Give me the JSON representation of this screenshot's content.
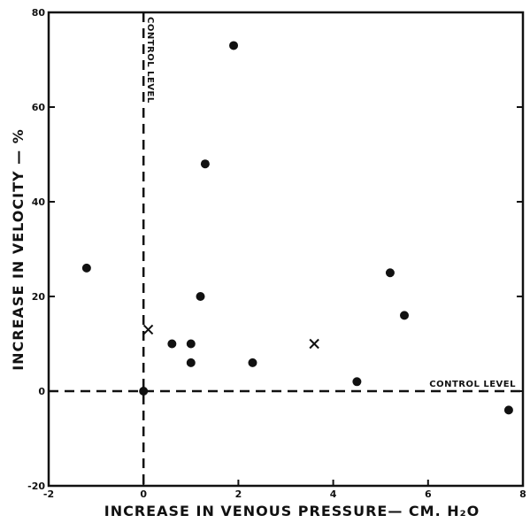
{
  "chart_data": {
    "type": "scatter",
    "title": "",
    "xlabel": "INCREASE IN VENOUS PRESSURE— CM. H₂O",
    "ylabel": "INCREASE IN VELOCITY — %",
    "xlim": [
      -2,
      8
    ],
    "ylim": [
      -20,
      80
    ],
    "x_ticks": [
      "-2",
      "0",
      "2",
      "4",
      "6",
      "8"
    ],
    "y_ticks": [
      "-20",
      "0",
      "20",
      "40",
      "60",
      "80"
    ],
    "grid": false,
    "series": [
      {
        "marker": "circle",
        "points": [
          {
            "x": -1.2,
            "y": 26
          },
          {
            "x": 0.0,
            "y": 0
          },
          {
            "x": 0.6,
            "y": 10
          },
          {
            "x": 1.0,
            "y": 10
          },
          {
            "x": 1.0,
            "y": 6
          },
          {
            "x": 1.2,
            "y": 20
          },
          {
            "x": 1.3,
            "y": 48
          },
          {
            "x": 1.9,
            "y": 73
          },
          {
            "x": 2.3,
            "y": 6
          },
          {
            "x": 4.5,
            "y": 2
          },
          {
            "x": 5.2,
            "y": 25
          },
          {
            "x": 5.5,
            "y": 16
          },
          {
            "x": 7.7,
            "y": -4
          }
        ]
      },
      {
        "marker": "x",
        "points": [
          {
            "x": 0.1,
            "y": 13
          },
          {
            "x": 3.6,
            "y": 10
          }
        ]
      }
    ],
    "reference_lines": [
      {
        "orientation": "vertical",
        "value": 0,
        "label": "CONTROL LEVEL"
      },
      {
        "orientation": "horizontal",
        "value": 0,
        "label": "CONTROL LEVEL"
      }
    ]
  }
}
